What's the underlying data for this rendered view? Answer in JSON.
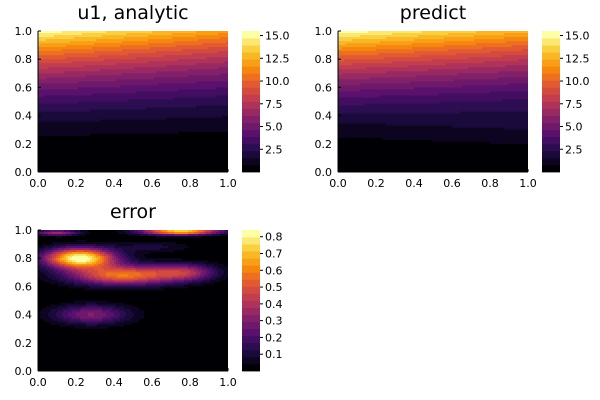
{
  "chart_data": [
    {
      "type": "contour",
      "title": "u1, analytic",
      "x_ticks": [
        "0.0",
        "0.2",
        "0.4",
        "0.6",
        "0.8",
        "1.0"
      ],
      "y_ticks": [
        "0.0",
        "0.2",
        "0.4",
        "0.6",
        "0.8",
        "1.0"
      ],
      "xlim": [
        0,
        1
      ],
      "ylim": [
        0,
        1
      ],
      "colorbar": {
        "range": [
          0,
          15.5
        ],
        "ticks": [
          "2.5",
          "5.0",
          "7.5",
          "10.0",
          "12.5",
          "15.0"
        ],
        "colormap": "inferno"
      },
      "field": "analytic"
    },
    {
      "type": "contour",
      "title": "predict",
      "x_ticks": [
        "0.0",
        "0.2",
        "0.4",
        "0.6",
        "0.8",
        "1.0"
      ],
      "y_ticks": [
        "0.0",
        "0.2",
        "0.4",
        "0.6",
        "0.8",
        "1.0"
      ],
      "xlim": [
        0,
        1
      ],
      "ylim": [
        0,
        1
      ],
      "colorbar": {
        "range": [
          0,
          15.5
        ],
        "ticks": [
          "2.5",
          "5.0",
          "7.5",
          "10.0",
          "12.5",
          "15.0"
        ],
        "colormap": "inferno"
      },
      "field": "predict"
    },
    {
      "type": "contour",
      "title": "error",
      "x_ticks": [
        "0.0",
        "0.2",
        "0.4",
        "0.6",
        "0.8",
        "1.0"
      ],
      "y_ticks": [
        "0.0",
        "0.2",
        "0.4",
        "0.6",
        "0.8",
        "1.0"
      ],
      "xlim": [
        0,
        1
      ],
      "ylim": [
        0,
        1
      ],
      "colorbar": {
        "range": [
          0,
          0.84
        ],
        "ticks": [
          "0.1",
          "0.2",
          "0.3",
          "0.4",
          "0.5",
          "0.6",
          "0.7",
          "0.8"
        ],
        "colormap": "inferno"
      },
      "field": "error"
    }
  ]
}
